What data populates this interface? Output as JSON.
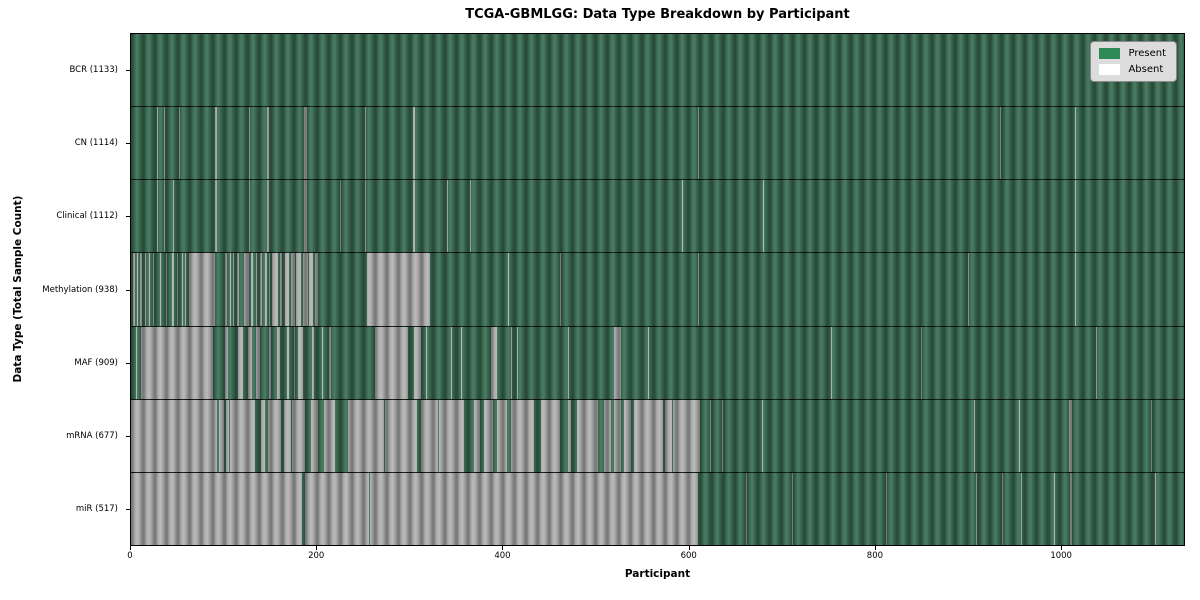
{
  "figure": {
    "background": "#ffffff",
    "plot_border_color": "#000000"
  },
  "chart_data": {
    "type": "heatmap",
    "title": "TCGA-GBMLGG: Data Type Breakdown by Participant",
    "xlabel": "Participant",
    "ylabel": "Data Type (Total Sample Count)",
    "x_range": [
      0,
      1133
    ],
    "x_ticks": [
      0,
      200,
      400,
      600,
      800,
      1000
    ],
    "grid": false,
    "legend_position": "upper right",
    "legend": [
      {
        "label": "Present",
        "color": "#2e8b57"
      },
      {
        "label": "Absent",
        "color": "#ffffff"
      }
    ],
    "colors": {
      "present_fill": "#3c6f55",
      "absent_fill": "#b3b3b3",
      "bar_edge_texture": "rgba(0,0,0,0.32)"
    },
    "rows": [
      {
        "name": "BCR",
        "label": "BCR (1133)",
        "present_count": 1133,
        "absent_intervals": []
      },
      {
        "name": "CN",
        "label": "CN (1114)",
        "present_count": 1114,
        "absent_intervals": [
          [
            28,
            29
          ],
          [
            35,
            36
          ],
          [
            52,
            53
          ],
          [
            90,
            93
          ],
          [
            127,
            128
          ],
          [
            146,
            148
          ],
          [
            186,
            189
          ],
          [
            252,
            253
          ],
          [
            303,
            306
          ],
          [
            610,
            611
          ],
          [
            935,
            936
          ],
          [
            1016,
            1017
          ]
        ]
      },
      {
        "name": "Clinical",
        "label": "Clinical (1112)",
        "present_count": 1112,
        "absent_intervals": [
          [
            28,
            29
          ],
          [
            35,
            36
          ],
          [
            45,
            46
          ],
          [
            90,
            93
          ],
          [
            127,
            128
          ],
          [
            146,
            148
          ],
          [
            186,
            189
          ],
          [
            225,
            226
          ],
          [
            252,
            253
          ],
          [
            303,
            306
          ],
          [
            340,
            341
          ],
          [
            365,
            366
          ],
          [
            593,
            594
          ],
          [
            680,
            681
          ],
          [
            1016,
            1017
          ]
        ]
      },
      {
        "name": "Methylation",
        "label": "Methylation (938)",
        "present_count": 938,
        "absent_intervals": [
          [
            2,
            4
          ],
          [
            6,
            7
          ],
          [
            10,
            12
          ],
          [
            15,
            16
          ],
          [
            19,
            20
          ],
          [
            24,
            25
          ],
          [
            31,
            32
          ],
          [
            38,
            39
          ],
          [
            44,
            46
          ],
          [
            50,
            51
          ],
          [
            55,
            56
          ],
          [
            58,
            59
          ],
          [
            62,
            90
          ],
          [
            101,
            103
          ],
          [
            106,
            107
          ],
          [
            110,
            111
          ],
          [
            114,
            116
          ],
          [
            122,
            127
          ],
          [
            129,
            131
          ],
          [
            134,
            136
          ],
          [
            139,
            141
          ],
          [
            144,
            146
          ],
          [
            149,
            150
          ],
          [
            152,
            158
          ],
          [
            160,
            163
          ],
          [
            166,
            170
          ],
          [
            172,
            176
          ],
          [
            178,
            183
          ],
          [
            185,
            190
          ],
          [
            192,
            196
          ],
          [
            198,
            201
          ],
          [
            254,
            322
          ],
          [
            406,
            407
          ],
          [
            462,
            463
          ],
          [
            610,
            611
          ],
          [
            901,
            902
          ],
          [
            1016,
            1017
          ]
        ]
      },
      {
        "name": "MAF",
        "label": "MAF (909)",
        "present_count": 909,
        "absent_intervals": [
          [
            5,
            6
          ],
          [
            11,
            88
          ],
          [
            101,
            104
          ],
          [
            115,
            120
          ],
          [
            126,
            130
          ],
          [
            135,
            139
          ],
          [
            148,
            151
          ],
          [
            157,
            160
          ],
          [
            168,
            170
          ],
          [
            175,
            177
          ],
          [
            180,
            185
          ],
          [
            195,
            197
          ],
          [
            205,
            207
          ],
          [
            213,
            215
          ],
          [
            262,
            298
          ],
          [
            305,
            312
          ],
          [
            317,
            319
          ],
          [
            344,
            345
          ],
          [
            355,
            356
          ],
          [
            387,
            394
          ],
          [
            409,
            410
          ],
          [
            415,
            416
          ],
          [
            470,
            471
          ],
          [
            520,
            527
          ],
          [
            556,
            557
          ],
          [
            753,
            754
          ],
          [
            850,
            851
          ],
          [
            1038,
            1039
          ]
        ]
      },
      {
        "name": "mRNA",
        "label": "mRNA (677)",
        "present_count": 677,
        "absent_intervals": [
          [
            0,
            92
          ],
          [
            95,
            100
          ],
          [
            102,
            105
          ],
          [
            106,
            133
          ],
          [
            140,
            144
          ],
          [
            147,
            161
          ],
          [
            165,
            172
          ],
          [
            173,
            187
          ],
          [
            194,
            201
          ],
          [
            208,
            219
          ],
          [
            233,
            272
          ],
          [
            273,
            308
          ],
          [
            312,
            330
          ],
          [
            331,
            358
          ],
          [
            369,
            376
          ],
          [
            380,
            390
          ],
          [
            394,
            405
          ],
          [
            409,
            434
          ],
          [
            441,
            462
          ],
          [
            470,
            473
          ],
          [
            480,
            502
          ],
          [
            509,
            516
          ],
          [
            520,
            527
          ],
          [
            530,
            538
          ],
          [
            541,
            572
          ],
          [
            575,
            582
          ],
          [
            583,
            612
          ],
          [
            623,
            624
          ],
          [
            636,
            637
          ],
          [
            679,
            680
          ],
          [
            907,
            908
          ],
          [
            956,
            957
          ],
          [
            1009,
            1012
          ],
          [
            1098,
            1099
          ]
        ]
      },
      {
        "name": "miR",
        "label": "miR (517)",
        "present_count": 517,
        "absent_intervals": [
          [
            0,
            184
          ],
          [
            187,
            256
          ],
          [
            257,
            610
          ],
          [
            662,
            663
          ],
          [
            711,
            712
          ],
          [
            812,
            813
          ],
          [
            909,
            910
          ],
          [
            937,
            938
          ],
          [
            958,
            959
          ],
          [
            993,
            994
          ],
          [
            1010,
            1013
          ],
          [
            1102,
            1103
          ]
        ]
      }
    ]
  }
}
